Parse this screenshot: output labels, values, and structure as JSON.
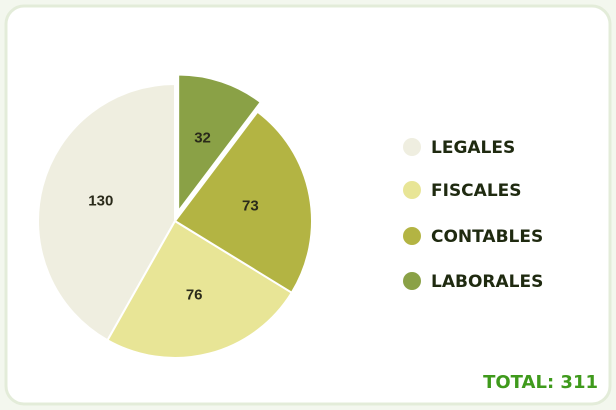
{
  "chart_data": {
    "type": "pie",
    "categories": [
      "LEGALES",
      "FISCALES",
      "CONTABLES",
      "LABORALES"
    ],
    "values": [
      130,
      76,
      73,
      32
    ],
    "colors": [
      "#efeee0",
      "#e8e596",
      "#b3b443",
      "#8aa146"
    ],
    "exploded": [
      false,
      false,
      false,
      true
    ],
    "legend": "right",
    "total_label": "TOTAL: 311"
  }
}
